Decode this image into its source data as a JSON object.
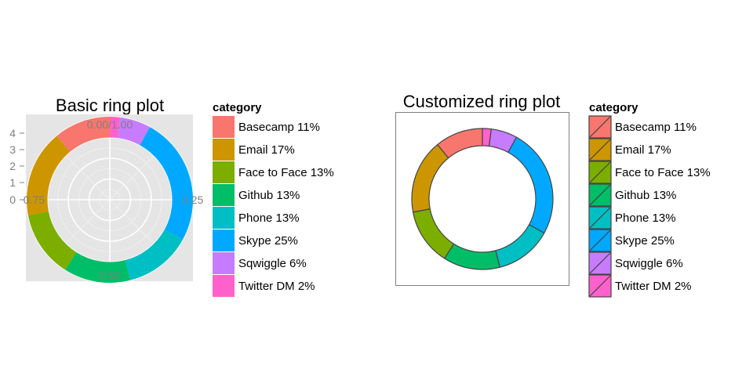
{
  "chart_data": [
    {
      "type": "pie",
      "variant": "ring",
      "title": "Basic ring plot",
      "categories": [
        "Basecamp",
        "Email",
        "Face to Face",
        "Github",
        "Phone",
        "Skype",
        "Sqwiggle",
        "Twitter DM"
      ],
      "values": [
        11,
        17,
        13,
        13,
        13,
        25,
        6,
        2
      ],
      "colors": [
        "#F8766D",
        "#CD9600",
        "#7CAE00",
        "#00BE67",
        "#00BFC4",
        "#00A9FF",
        "#C77CFF",
        "#FF61CC"
      ],
      "legend": {
        "title": "category",
        "labels": [
          "Basecamp 11%",
          "Email 17%",
          "Face to Face 13%",
          "Github 13%",
          "Phone 13%",
          "Skype 25%",
          "Sqwiggle 6%",
          "Twitter DM 2%"
        ],
        "placement": "right"
      },
      "angle_tick_labels": [
        "0.00/1.00",
        "0.25",
        "0.50",
        "0.75"
      ],
      "radius_tick_labels": [
        "0",
        "1",
        "2",
        "3",
        "4"
      ],
      "ylim": [
        0,
        4
      ],
      "ring_range": [
        3,
        4
      ],
      "grid": true,
      "background": "#e5e5e5"
    },
    {
      "type": "pie",
      "variant": "ring",
      "title": "Customized ring plot",
      "categories": [
        "Basecamp",
        "Email",
        "Face to Face",
        "Github",
        "Phone",
        "Skype",
        "Sqwiggle",
        "Twitter DM"
      ],
      "values": [
        11,
        17,
        13,
        13,
        13,
        25,
        6,
        2
      ],
      "colors": [
        "#F8766D",
        "#CD9600",
        "#7CAE00",
        "#00BE67",
        "#00BFC4",
        "#00A9FF",
        "#C77CFF",
        "#FF61CC"
      ],
      "legend": {
        "title": "category",
        "labels": [
          "Basecamp 11%",
          "Email 17%",
          "Face to Face 13%",
          "Github 13%",
          "Phone 13%",
          "Skype 25%",
          "Sqwiggle 6%",
          "Twitter DM 2%"
        ],
        "placement": "right"
      },
      "grid": false,
      "panel_border": true,
      "slice_outline": "#444444"
    }
  ]
}
